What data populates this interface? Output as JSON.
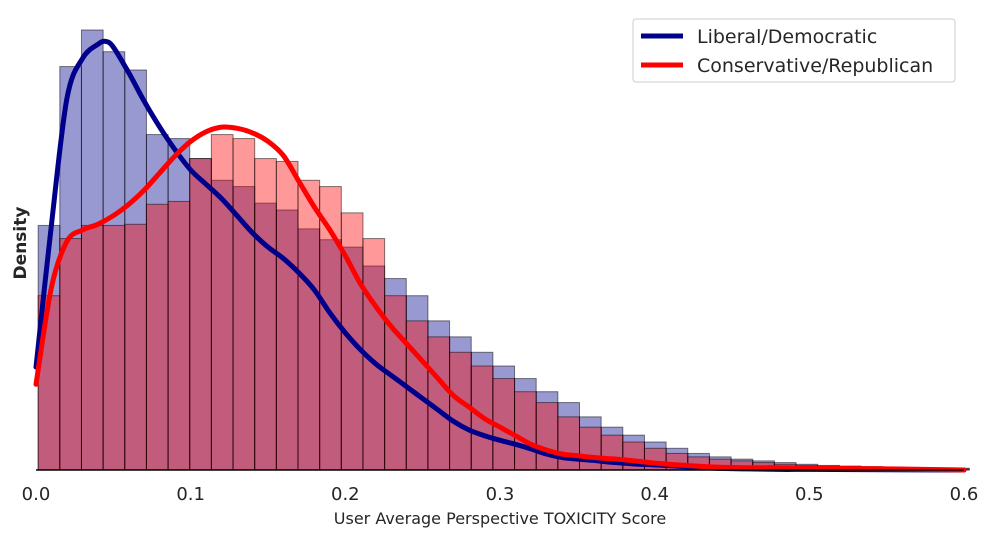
{
  "chart_data": {
    "type": "histogram",
    "title": "",
    "xlabel": "User Average Perspective TOXICITY Score",
    "ylabel": "Density",
    "xlim": [
      0.0,
      0.6
    ],
    "ylim": [
      0,
      7.7
    ],
    "xticks": [
      "0.0",
      "0.1",
      "0.2",
      "0.3",
      "0.4",
      "0.5",
      "0.6"
    ],
    "grid": false,
    "legend_position": "top-right",
    "bin_width": 0.014,
    "bin_start": 0.0014,
    "series": [
      {
        "name": "Liberal/Democratic",
        "bar_color": "#00008b",
        "line_color": "#00008b",
        "bar_values": [
          4.28,
          7.06,
          7.7,
          7.32,
          7.0,
          5.87,
          5.8,
          5.45,
          5.07,
          4.96,
          4.67,
          4.55,
          4.22,
          4.03,
          3.9,
          3.57,
          3.35,
          3.05,
          2.61,
          2.33,
          2.06,
          1.82,
          1.6,
          1.37,
          1.18,
          0.93,
          0.75,
          0.61,
          0.49,
          0.38,
          0.29,
          0.23,
          0.19,
          0.16,
          0.13,
          0.1,
          0.08,
          0.07,
          0.06,
          0.05,
          0.04,
          0.03,
          0.03
        ],
        "kde_x": [
          0.0,
          0.01,
          0.02,
          0.03,
          0.04,
          0.045,
          0.05,
          0.06,
          0.07,
          0.08,
          0.09,
          0.1,
          0.11,
          0.12,
          0.13,
          0.14,
          0.15,
          0.16,
          0.17,
          0.18,
          0.19,
          0.2,
          0.21,
          0.22,
          0.23,
          0.24,
          0.25,
          0.26,
          0.27,
          0.28,
          0.29,
          0.3,
          0.31,
          0.32,
          0.33,
          0.34,
          0.35,
          0.36,
          0.37,
          0.38,
          0.39,
          0.4,
          0.42,
          0.44,
          0.46,
          0.48,
          0.5,
          0.55,
          0.6
        ],
        "kde_y": [
          1.8,
          4.3,
          6.5,
          7.2,
          7.45,
          7.5,
          7.4,
          6.95,
          6.45,
          6.0,
          5.6,
          5.25,
          5.0,
          4.75,
          4.45,
          4.15,
          3.9,
          3.7,
          3.45,
          3.15,
          2.75,
          2.4,
          2.1,
          1.85,
          1.65,
          1.45,
          1.25,
          1.05,
          0.85,
          0.7,
          0.6,
          0.52,
          0.45,
          0.37,
          0.28,
          0.22,
          0.19,
          0.17,
          0.14,
          0.12,
          0.1,
          0.09,
          0.06,
          0.03,
          0.02,
          0.01,
          0.01,
          0.005,
          0.0
        ]
      },
      {
        "name": "Conservative/Republican",
        "bar_color": "#ff0000",
        "line_color": "#ff0000",
        "bar_values": [
          3.05,
          4.05,
          4.28,
          4.28,
          4.3,
          4.65,
          4.7,
          5.45,
          5.87,
          5.8,
          5.45,
          5.4,
          5.07,
          4.96,
          4.5,
          4.05,
          3.05,
          2.61,
          2.33,
          2.06,
          1.82,
          1.6,
          1.37,
          1.18,
          0.93,
          0.75,
          0.61,
          0.49,
          0.38,
          0.29,
          0.23,
          0.19,
          0.16,
          0.13,
          0.1,
          0.08,
          0.07,
          0.06,
          0.05,
          0.04,
          0.03,
          0.03,
          0.02
        ],
        "kde_x": [
          0.0,
          0.01,
          0.02,
          0.03,
          0.04,
          0.05,
          0.06,
          0.07,
          0.08,
          0.09,
          0.1,
          0.11,
          0.12,
          0.13,
          0.14,
          0.15,
          0.16,
          0.17,
          0.18,
          0.19,
          0.2,
          0.21,
          0.22,
          0.23,
          0.24,
          0.25,
          0.26,
          0.27,
          0.28,
          0.29,
          0.3,
          0.31,
          0.32,
          0.33,
          0.34,
          0.35,
          0.36,
          0.37,
          0.38,
          0.39,
          0.4,
          0.42,
          0.44,
          0.46,
          0.48,
          0.5,
          0.55,
          0.6
        ],
        "kde_y": [
          1.5,
          3.2,
          4.0,
          4.2,
          4.3,
          4.45,
          4.65,
          4.9,
          5.2,
          5.5,
          5.75,
          5.92,
          6.0,
          5.98,
          5.9,
          5.75,
          5.5,
          5.05,
          4.6,
          4.2,
          3.75,
          3.25,
          2.85,
          2.5,
          2.2,
          1.9,
          1.6,
          1.3,
          1.1,
          0.9,
          0.75,
          0.6,
          0.45,
          0.35,
          0.28,
          0.25,
          0.22,
          0.2,
          0.18,
          0.15,
          0.12,
          0.08,
          0.05,
          0.04,
          0.04,
          0.03,
          0.02,
          0.0
        ]
      }
    ]
  }
}
